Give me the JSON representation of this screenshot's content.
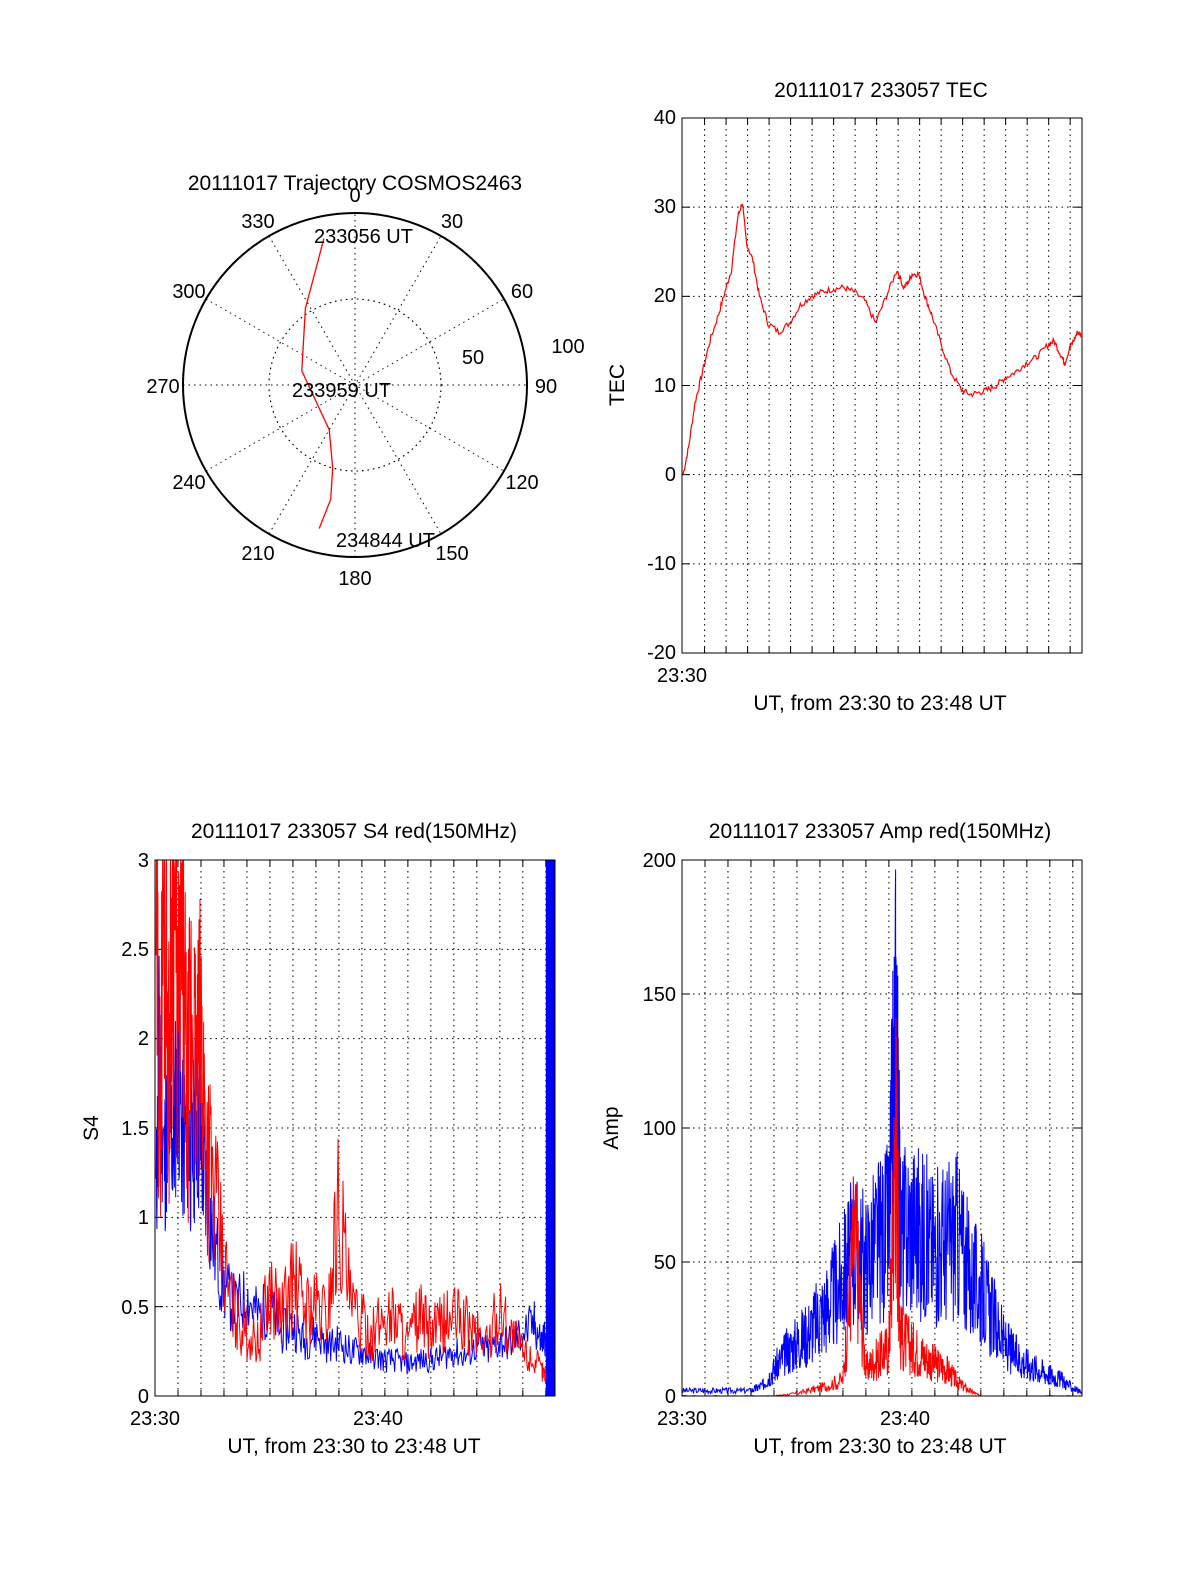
{
  "colors": {
    "primary_series": "#ff0000",
    "secondary_series": "#0000ff",
    "axes": "#000000"
  },
  "chart_data": [
    {
      "type": "polar",
      "title": "20111017 Trajectory COSMOS2463",
      "angle_labels": [
        "0",
        "30",
        "60",
        "90",
        "120",
        "150",
        "180",
        "210",
        "240",
        "270",
        "300",
        "330"
      ],
      "radial_labels": [
        "50",
        "100"
      ],
      "rlim": [
        0,
        100
      ],
      "series": [
        {
          "points": [
            [
              -12,
              87
            ],
            [
              -33,
              53
            ],
            [
              -75,
              32
            ],
            [
              -150,
              30
            ],
            [
              -165,
              50
            ],
            [
              -168,
              68
            ],
            [
              -166,
              86
            ]
          ],
          "color": "#ff0000"
        }
      ],
      "annotations": [
        "233056 UT",
        "233959 UT",
        "234844 UT"
      ],
      "grid": true
    },
    {
      "type": "line",
      "title": "20111017 233057 TEC",
      "xlabel": "UT, from 23:30 to 23:48 UT",
      "ylabel": "TEC",
      "x_tick_labels": [
        "23:30"
      ],
      "y_ticks": [
        "-20",
        "-10",
        "0",
        "10",
        "20",
        "30",
        "40"
      ],
      "xlim": [
        0,
        18.6
      ],
      "ylim": [
        -20,
        40
      ],
      "x_unit": "minutes after 23:30 UT",
      "grid": true,
      "series": [
        {
          "color": "#ff0000",
          "x": [
            0.05,
            0.3,
            0.6,
            0.9,
            1.3,
            1.7,
            2.0,
            2.3,
            2.6,
            2.8,
            3.0,
            3.3,
            3.6,
            4.0,
            4.5,
            5.0,
            5.5,
            6.0,
            6.5,
            7.0,
            7.5,
            8.0,
            8.5,
            9.0,
            9.5,
            10.0,
            10.3,
            10.5,
            10.7,
            11.0,
            11.3,
            11.6,
            12.0,
            12.5,
            13.0,
            13.4,
            13.8,
            14.2,
            14.6,
            15.0,
            15.5,
            16.0,
            16.5,
            17.0,
            17.3,
            17.6,
            17.8,
            18.0,
            18.2,
            18.4,
            18.6
          ],
          "y": [
            0,
            3,
            8,
            11,
            15,
            18,
            20.5,
            23,
            29,
            30.5,
            26,
            24,
            20,
            17,
            16,
            17,
            19,
            20,
            20.5,
            20.8,
            21,
            20.5,
            19.5,
            17,
            20,
            23,
            21,
            21.5,
            22.5,
            22.5,
            20,
            18,
            15,
            11.5,
            9.5,
            9,
            9.2,
            9.5,
            10,
            10.8,
            11.5,
            12.5,
            13.2,
            14.5,
            15,
            13.5,
            12.5,
            14,
            15,
            16,
            15.5
          ]
        }
      ]
    },
    {
      "type": "line",
      "title": "20111017 233057 S4 red(150MHz)",
      "xlabel": "UT, from 23:30 to 23:48 UT",
      "ylabel": "S4",
      "x_tick_labels": [
        "23:30",
        "23:40"
      ],
      "y_ticks": [
        "0",
        "0.5",
        "1",
        "1.5",
        "2",
        "2.5",
        "3"
      ],
      "xlim": [
        0,
        17.4
      ],
      "ylim": [
        0,
        3
      ],
      "x_unit": "minutes after 23:30 UT",
      "grid": true,
      "series": [
        {
          "color": "#ff0000",
          "x": [
            0.05,
            0.2,
            0.4,
            0.6,
            0.8,
            1.0,
            1.2,
            1.4,
            1.6,
            1.8,
            2.0,
            2.2,
            2.5,
            3.0,
            3.5,
            4.0,
            4.5,
            5.0,
            5.5,
            6.0,
            6.5,
            7.0,
            7.5,
            8.0,
            8.5,
            9.0,
            9.5,
            10.0,
            10.5,
            11.0,
            11.5,
            12.0,
            12.5,
            13.0,
            13.5,
            14.0,
            14.5,
            15.0,
            15.5,
            16.0,
            16.5,
            16.8,
            17.0
          ],
          "y": [
            2.8,
            1.5,
            3.0,
            1.8,
            3.0,
            2.0,
            2.5,
            1.6,
            2.2,
            1.7,
            2.0,
            1.5,
            1.2,
            0.7,
            0.45,
            0.35,
            0.3,
            0.6,
            0.45,
            0.65,
            0.5,
            0.5,
            0.45,
            1.1,
            0.5,
            0.4,
            0.35,
            0.45,
            0.45,
            0.3,
            0.45,
            0.35,
            0.4,
            0.45,
            0.4,
            0.35,
            0.3,
            0.5,
            0.35,
            0.25,
            0.2,
            0.15,
            0.12
          ]
        },
        {
          "color": "#0000ff",
          "x": [
            0.05,
            0.2,
            0.4,
            0.6,
            0.8,
            1.0,
            1.2,
            1.4,
            1.6,
            1.8,
            2.0,
            2.2,
            2.5,
            3.0,
            3.5,
            4.0,
            4.5,
            5.0,
            5.5,
            6.0,
            6.5,
            7.0,
            7.5,
            8.0,
            8.5,
            9.0,
            9.5,
            10.0,
            10.5,
            11.0,
            11.5,
            12.0,
            12.5,
            13.0,
            13.5,
            14.0,
            14.5,
            15.0,
            15.5,
            16.0,
            16.5,
            16.8,
            17.0
          ],
          "y": [
            1.1,
            2.0,
            1.3,
            1.6,
            1.4,
            1.9,
            1.4,
            1.5,
            1.3,
            1.6,
            1.4,
            1.2,
            0.9,
            0.6,
            0.5,
            0.55,
            0.45,
            0.5,
            0.35,
            0.4,
            0.3,
            0.35,
            0.28,
            0.3,
            0.25,
            0.25,
            0.22,
            0.2,
            0.2,
            0.18,
            0.2,
            0.2,
            0.22,
            0.25,
            0.22,
            0.28,
            0.25,
            0.3,
            0.3,
            0.35,
            0.4,
            0.3,
            0.35
          ]
        }
      ],
      "highlight_band": {
        "x_start": 17.0,
        "x_end": 17.4,
        "color": "#0000ff"
      }
    },
    {
      "type": "line",
      "title": "20111017 233057 Amp red(150MHz)",
      "xlabel": "UT, from 23:30 to 23:48 UT",
      "ylabel": "Amp",
      "x_tick_labels": [
        "23:30",
        "23:40"
      ],
      "y_ticks": [
        "0",
        "50",
        "100",
        "150",
        "200"
      ],
      "xlim": [
        0,
        17.4
      ],
      "ylim": [
        0,
        200
      ],
      "x_unit": "minutes after 23:30 UT",
      "grid": true,
      "series": [
        {
          "color": "#0000ff",
          "x": [
            0,
            1,
            2,
            3,
            3.5,
            4,
            4.5,
            5,
            5.5,
            6,
            6.5,
            7,
            7.5,
            8,
            8.5,
            9,
            9.3,
            9.5,
            10,
            10.5,
            11,
            11.5,
            12,
            12.5,
            13,
            13.5,
            14,
            14.5,
            15,
            15.5,
            16,
            16.5,
            17,
            17.4
          ],
          "y": [
            2,
            2,
            2,
            2,
            4,
            10,
            16,
            20,
            24,
            30,
            36,
            45,
            55,
            50,
            58,
            62,
            140,
            60,
            65,
            60,
            55,
            58,
            60,
            45,
            40,
            30,
            20,
            15,
            12,
            10,
            8,
            6,
            3,
            1
          ]
        },
        {
          "color": "#ff0000",
          "x": [
            0,
            4,
            5,
            6,
            7,
            7.5,
            8,
            8.5,
            9,
            9.3,
            9.5,
            10,
            10.5,
            11,
            11.5,
            12,
            12.5,
            13,
            17.4
          ],
          "y": [
            0,
            0,
            1,
            3,
            6,
            60,
            10,
            14,
            18,
            100,
            22,
            18,
            15,
            12,
            10,
            5,
            2,
            0,
            0
          ]
        }
      ]
    }
  ]
}
